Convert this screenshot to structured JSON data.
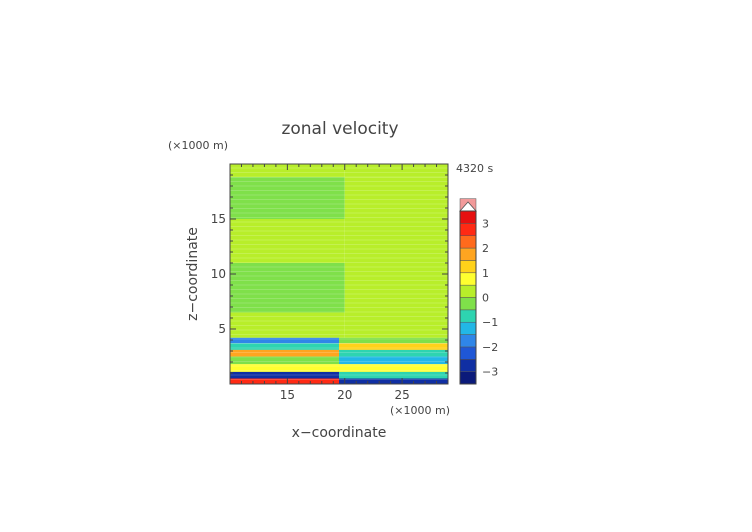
{
  "chart_data": {
    "type": "heatmap",
    "title": "zonal velocity",
    "time_label": "4320 s",
    "xlabel": "x−coordinate",
    "ylabel": "z−coordinate",
    "x_unit": "(×1000 m)",
    "y_unit": "(×1000 m)",
    "xlim": [
      10,
      29
    ],
    "ylim": [
      0,
      20
    ],
    "x_ticks": [
      15,
      20,
      25
    ],
    "y_ticks": [
      5,
      10,
      15
    ],
    "colorbar": {
      "min": -3.5,
      "max": 3.5,
      "step": 0.5,
      "extend": "max",
      "tick_values": [
        3,
        2,
        1,
        0,
        -1,
        -2,
        -3
      ],
      "tick_labels": [
        "3",
        "2",
        "1",
        "0",
        "−1",
        "−2",
        "−3"
      ],
      "colors": [
        "#0b1a7a",
        "#102fa3",
        "#1f57d6",
        "#2f86e8",
        "#22b7e6",
        "#2ed4b0",
        "#7fe04a",
        "#b8ee2a",
        "#ffff30",
        "#ffd21a",
        "#ffa520",
        "#ff6a1c",
        "#ff2a14",
        "#e61010",
        "#f29a9a"
      ]
    },
    "bands": [
      {
        "z": [
          18.8,
          20.0
        ],
        "value": 0.2
      },
      {
        "z": [
          15.0,
          18.8
        ],
        "value": -0.2
      },
      {
        "z": [
          11.0,
          15.0
        ],
        "value": 0.2
      },
      {
        "z": [
          6.5,
          11.0
        ],
        "value": -0.2
      },
      {
        "z": [
          4.2,
          6.5
        ],
        "value": 0.2
      }
    ],
    "lower_layers": [
      {
        "z": [
          3.7,
          4.2
        ],
        "value_left": -1.6,
        "value_right": -0.2
      },
      {
        "z": [
          3.1,
          3.7
        ],
        "value_left": -0.7,
        "value_right": 1.2
      },
      {
        "z": [
          2.5,
          3.1
        ],
        "value_left": 1.6,
        "value_right": -0.6
      },
      {
        "z": [
          1.8,
          2.5
        ],
        "value_left": -0.2,
        "value_right": -1.3
      },
      {
        "z": [
          1.1,
          1.8
        ],
        "value_left": 0.8,
        "value_right": 0.9
      },
      {
        "z": [
          0.5,
          1.1
        ],
        "value_left": -2.6,
        "value_right": -1.0
      },
      {
        "z": [
          0.0,
          0.5
        ],
        "value_left": 2.8,
        "value_right": -2.9
      }
    ]
  }
}
